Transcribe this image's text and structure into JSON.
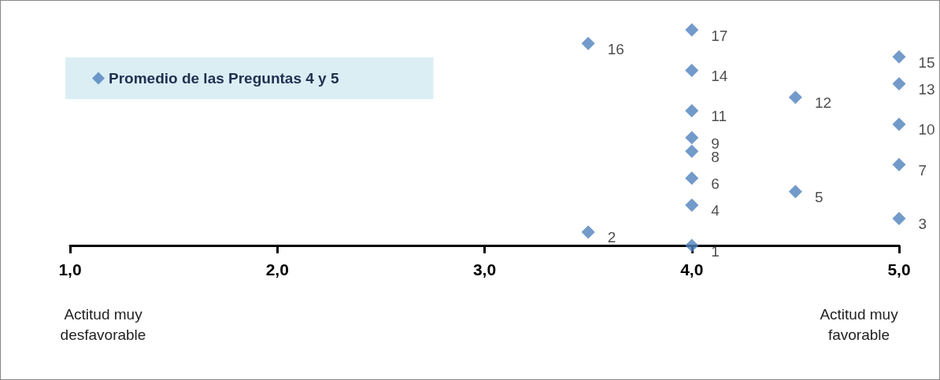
{
  "chart_data": {
    "type": "scatter",
    "x": [
      4.0,
      3.5,
      5.0,
      4.0,
      4.5,
      4.0,
      5.0,
      4.0,
      4.0,
      5.0,
      4.0,
      4.5,
      5.0,
      4.0,
      5.0,
      3.5,
      4.0
    ],
    "series": [
      {
        "name": "Promedio de las Preguntas 4 y 5",
        "color": "#4f81bd",
        "values": [
          1,
          2,
          3,
          4,
          5,
          6,
          7,
          8,
          9,
          10,
          11,
          12,
          13,
          14,
          15,
          16,
          17
        ]
      }
    ],
    "xlim": [
      1,
      5
    ],
    "xticks": [
      {
        "value": 1,
        "label": "1,0"
      },
      {
        "value": 2,
        "label": "2,0"
      },
      {
        "value": 3,
        "label": "3,0"
      },
      {
        "value": 4,
        "label": "4,0"
      },
      {
        "value": 5,
        "label": "5,0"
      }
    ],
    "tick_labels": "x",
    "data_labels": true,
    "marker": "diamond",
    "grid": false,
    "legend": "top left",
    "annotations": [
      "Actitud muy\ndesfavorable",
      "Actitud muy\nfavorable"
    ]
  }
}
